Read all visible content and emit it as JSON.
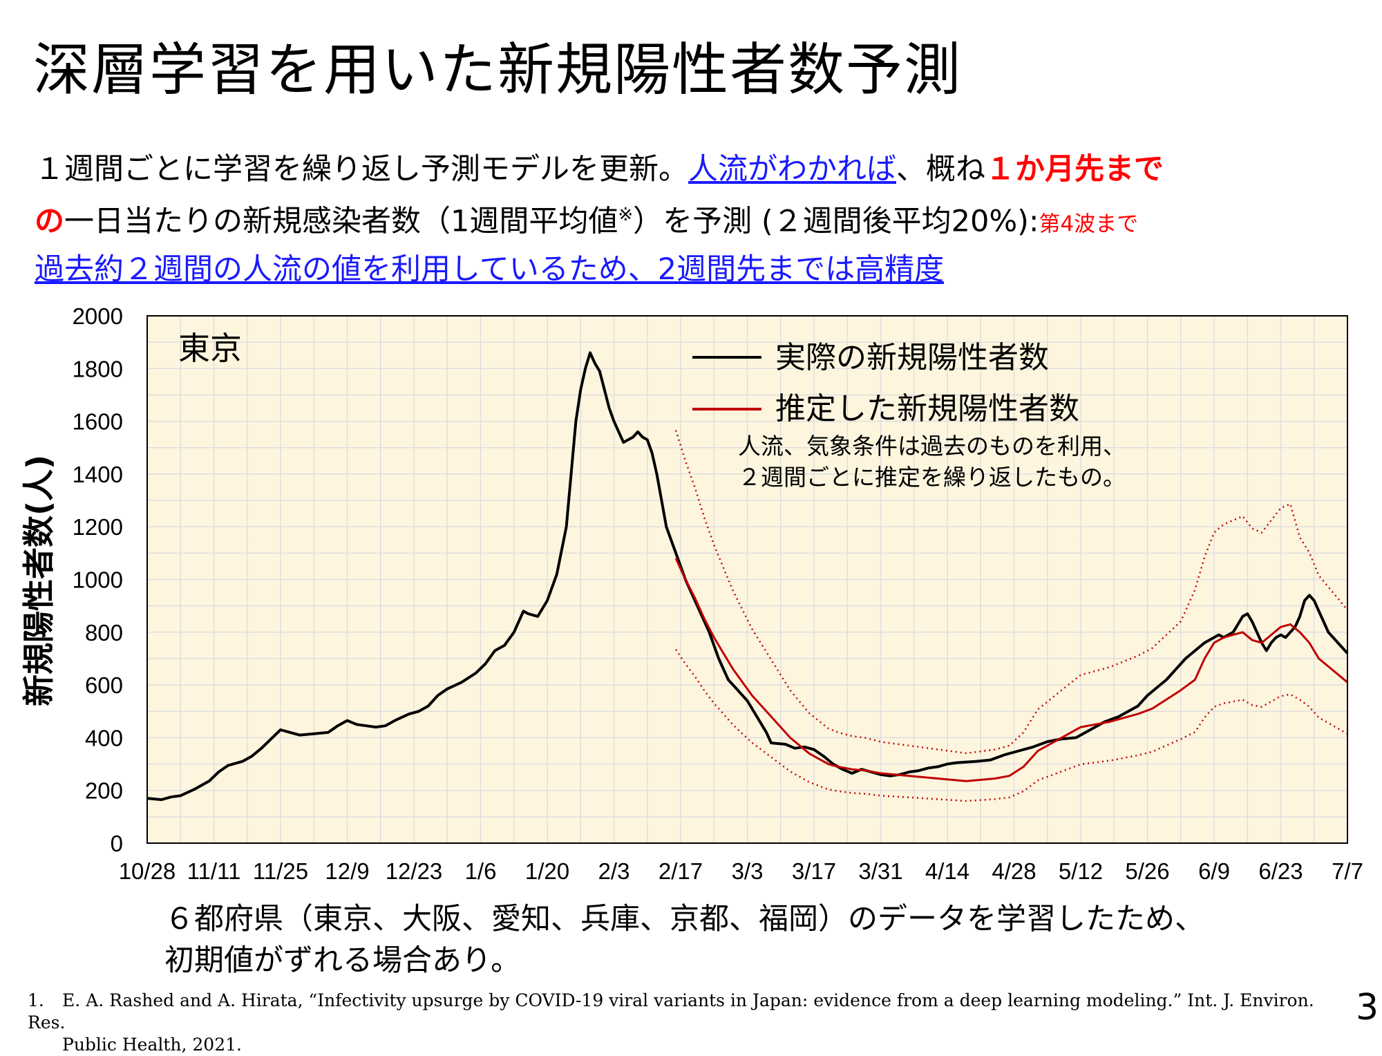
{
  "slide": {
    "title": "深層学習を用いた新規陽性者数予測",
    "page_number": "3"
  },
  "description": {
    "line1_a": "１週間ごとに学習を繰り返し予測モデルを更新。",
    "line1_link": "人流がわかれば",
    "line1_b": "、概ね",
    "line1_red": "１か月先まで",
    "line2_red": "の",
    "line2_a": "一日当たりの新規感染者数（1週間平均値",
    "line2_sup": "※",
    "line2_b": "）を予測 (２週間後平均20%):",
    "line2_small_red": "第4波まで",
    "line3_link": "過去約２週間の人流の値を利用しているため、2週間先までは高精度"
  },
  "note": {
    "line1": "６都府県（東京、大阪、愛知、兵庫、京都、福岡）のデータを学習したため、",
    "line2": "初期値がずれる場合あり。"
  },
  "reference": {
    "number": "1.",
    "text_line1": "E. A. Rashed and A. Hirata, “Infectivity upsurge by COVID-19 viral variants in Japan: evidence from a deep learning modeling.” Int. J. Environ. Res.",
    "text_line2": "Public Health, 2021."
  },
  "colors": {
    "plot_background": "#fdf5de",
    "grid": "#dedede",
    "actual": "#000000",
    "predicted": "#c00000",
    "link": "#1a1aff",
    "emphasis": "#ff0000"
  },
  "chart_data": {
    "type": "line",
    "ylabel": "新規陽性者数(人)",
    "region_label": "東京",
    "annotation_line1": "人流、気象条件は過去のものを利用、",
    "annotation_line2": "２週間ごとに推定を繰り返したもの。",
    "x_axis": "date",
    "x_ticks": [
      "10/28",
      "11/11",
      "11/25",
      "12/9",
      "12/23",
      "1/6",
      "1/20",
      "2/3",
      "2/17",
      "3/3",
      "3/17",
      "3/31",
      "4/14",
      "4/28",
      "5/12",
      "5/26",
      "6/9",
      "6/23",
      "7/7"
    ],
    "xlim_days": [
      0,
      252
    ],
    "ylim": [
      0,
      2000
    ],
    "y_ticks": [
      0,
      200,
      400,
      600,
      800,
      1000,
      1200,
      1400,
      1600,
      1800,
      2000
    ],
    "grid": true,
    "legend_position": "top-right",
    "series": [
      {
        "name": "実際の新規陽性者数",
        "style": "solid-black",
        "points": [
          [
            0,
            170
          ],
          [
            3,
            165
          ],
          [
            5,
            175
          ],
          [
            7,
            180
          ],
          [
            10,
            205
          ],
          [
            13,
            235
          ],
          [
            15,
            270
          ],
          [
            17,
            295
          ],
          [
            20,
            310
          ],
          [
            22,
            330
          ],
          [
            24,
            360
          ],
          [
            26,
            395
          ],
          [
            28,
            430
          ],
          [
            30,
            420
          ],
          [
            32,
            410
          ],
          [
            35,
            415
          ],
          [
            38,
            420
          ],
          [
            40,
            445
          ],
          [
            42,
            465
          ],
          [
            44,
            450
          ],
          [
            46,
            445
          ],
          [
            48,
            440
          ],
          [
            50,
            445
          ],
          [
            52,
            465
          ],
          [
            55,
            490
          ],
          [
            57,
            500
          ],
          [
            59,
            520
          ],
          [
            61,
            560
          ],
          [
            63,
            585
          ],
          [
            66,
            610
          ],
          [
            69,
            645
          ],
          [
            71,
            680
          ],
          [
            73,
            730
          ],
          [
            75,
            750
          ],
          [
            77,
            800
          ],
          [
            79,
            880
          ],
          [
            80,
            870
          ],
          [
            82,
            860
          ],
          [
            84,
            920
          ],
          [
            86,
            1020
          ],
          [
            88,
            1200
          ],
          [
            89,
            1400
          ],
          [
            90,
            1600
          ],
          [
            91,
            1720
          ],
          [
            92,
            1800
          ],
          [
            93,
            1860
          ],
          [
            94,
            1820
          ],
          [
            95,
            1790
          ],
          [
            96,
            1720
          ],
          [
            97,
            1650
          ],
          [
            98,
            1600
          ],
          [
            99,
            1560
          ],
          [
            100,
            1520
          ],
          [
            101,
            1530
          ],
          [
            102,
            1540
          ],
          [
            103,
            1560
          ],
          [
            104,
            1540
          ],
          [
            105,
            1530
          ],
          [
            106,
            1480
          ],
          [
            107,
            1400
          ],
          [
            108,
            1300
          ],
          [
            109,
            1200
          ],
          [
            110,
            1150
          ],
          [
            111,
            1100
          ],
          [
            112,
            1050
          ],
          [
            113,
            1000
          ],
          [
            114,
            960
          ],
          [
            115,
            920
          ],
          [
            116,
            880
          ],
          [
            118,
            800
          ],
          [
            120,
            700
          ],
          [
            122,
            620
          ],
          [
            124,
            580
          ],
          [
            126,
            540
          ],
          [
            128,
            480
          ],
          [
            130,
            420
          ],
          [
            131,
            380
          ],
          [
            134,
            375
          ],
          [
            136,
            360
          ],
          [
            138,
            365
          ],
          [
            140,
            355
          ],
          [
            142,
            330
          ],
          [
            144,
            300
          ],
          [
            146,
            280
          ],
          [
            148,
            265
          ],
          [
            150,
            280
          ],
          [
            152,
            270
          ],
          [
            154,
            260
          ],
          [
            156,
            255
          ],
          [
            158,
            260
          ],
          [
            160,
            270
          ],
          [
            162,
            275
          ],
          [
            164,
            285
          ],
          [
            166,
            290
          ],
          [
            168,
            300
          ],
          [
            170,
            305
          ],
          [
            174,
            310
          ],
          [
            177,
            315
          ],
          [
            180,
            335
          ],
          [
            183,
            350
          ],
          [
            186,
            365
          ],
          [
            189,
            385
          ],
          [
            192,
            395
          ],
          [
            195,
            400
          ],
          [
            198,
            430
          ],
          [
            201,
            460
          ],
          [
            204,
            480
          ],
          [
            206,
            500
          ],
          [
            208,
            520
          ],
          [
            210,
            560
          ],
          [
            212,
            590
          ],
          [
            214,
            620
          ],
          [
            216,
            660
          ],
          [
            218,
            700
          ],
          [
            220,
            730
          ],
          [
            222,
            760
          ],
          [
            224,
            780
          ],
          [
            225,
            790
          ],
          [
            226,
            780
          ],
          [
            228,
            800
          ],
          [
            229,
            830
          ],
          [
            230,
            860
          ],
          [
            231,
            870
          ],
          [
            232,
            840
          ],
          [
            233,
            800
          ],
          [
            234,
            760
          ],
          [
            235,
            730
          ],
          [
            236,
            760
          ],
          [
            237,
            780
          ],
          [
            238,
            790
          ],
          [
            239,
            780
          ],
          [
            240,
            800
          ],
          [
            241,
            820
          ],
          [
            242,
            860
          ],
          [
            243,
            920
          ],
          [
            244,
            940
          ],
          [
            245,
            920
          ],
          [
            246,
            880
          ],
          [
            247,
            840
          ],
          [
            248,
            800
          ],
          [
            250,
            760
          ],
          [
            252,
            720
          ]
        ]
      },
      {
        "name": "推定した新規陽性者数",
        "style": "solid-red",
        "points": [
          [
            111,
            1080
          ],
          [
            113,
            1000
          ],
          [
            115,
            930
          ],
          [
            117,
            850
          ],
          [
            119,
            780
          ],
          [
            121,
            720
          ],
          [
            123,
            660
          ],
          [
            125,
            610
          ],
          [
            127,
            560
          ],
          [
            129,
            520
          ],
          [
            131,
            480
          ],
          [
            133,
            440
          ],
          [
            135,
            400
          ],
          [
            137,
            370
          ],
          [
            139,
            340
          ],
          [
            141,
            320
          ],
          [
            143,
            300
          ],
          [
            145,
            290
          ],
          [
            148,
            280
          ],
          [
            151,
            275
          ],
          [
            154,
            265
          ],
          [
            157,
            260
          ],
          [
            160,
            255
          ],
          [
            163,
            250
          ],
          [
            166,
            245
          ],
          [
            169,
            240
          ],
          [
            172,
            235
          ],
          [
            175,
            240
          ],
          [
            178,
            245
          ],
          [
            181,
            255
          ],
          [
            184,
            290
          ],
          [
            187,
            350
          ],
          [
            190,
            380
          ],
          [
            193,
            410
          ],
          [
            196,
            440
          ],
          [
            199,
            450
          ],
          [
            202,
            460
          ],
          [
            205,
            475
          ],
          [
            208,
            490
          ],
          [
            211,
            510
          ],
          [
            214,
            545
          ],
          [
            217,
            580
          ],
          [
            220,
            620
          ],
          [
            222,
            700
          ],
          [
            224,
            760
          ],
          [
            226,
            780
          ],
          [
            228,
            790
          ],
          [
            230,
            800
          ],
          [
            232,
            770
          ],
          [
            234,
            760
          ],
          [
            236,
            790
          ],
          [
            238,
            820
          ],
          [
            240,
            830
          ],
          [
            242,
            800
          ],
          [
            244,
            760
          ],
          [
            246,
            700
          ],
          [
            248,
            670
          ],
          [
            250,
            640
          ],
          [
            252,
            610
          ]
        ]
      }
    ]
  }
}
